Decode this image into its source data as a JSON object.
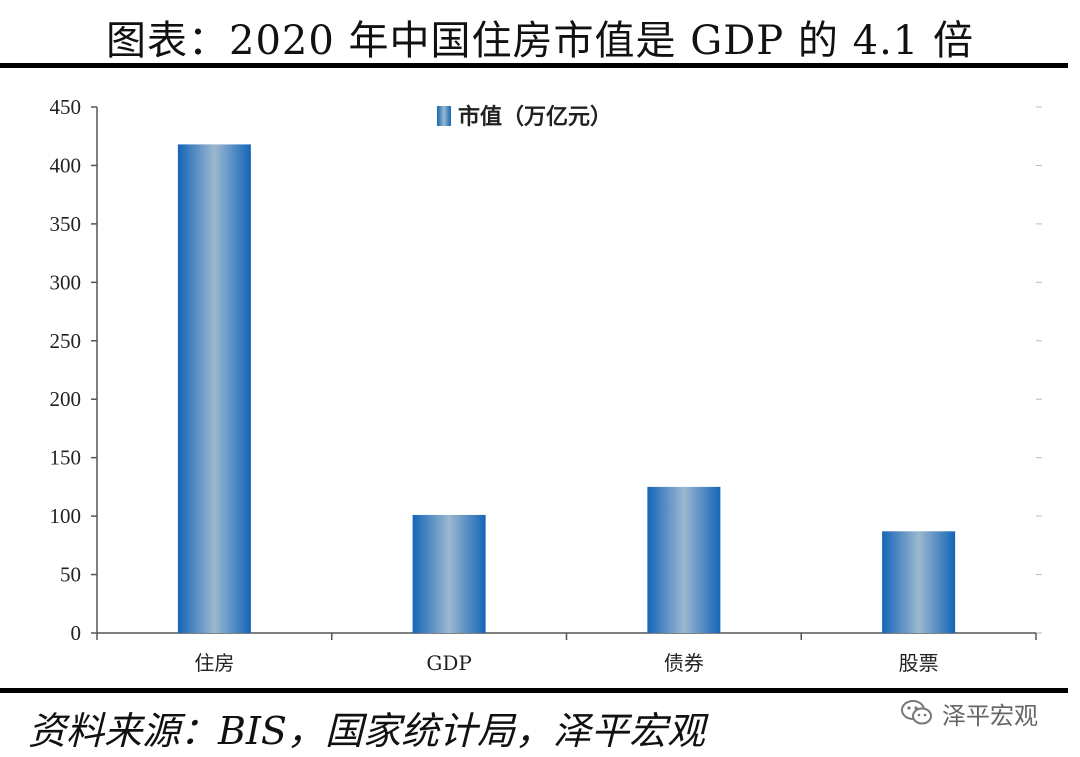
{
  "title": "图表：2020 年中国住房市值是 GDP 的 4.1 倍",
  "source": "资料来源：BIS，国家统计局，泽平宏观",
  "watermark": {
    "text": "泽平宏观",
    "icon": "wechat-icon"
  },
  "chart_data": {
    "type": "bar",
    "categories": [
      "住房",
      "GDP",
      "债券",
      "股票"
    ],
    "series": [
      {
        "name": "市值（万亿元）",
        "values": [
          418,
          101,
          125,
          87
        ],
        "color": "#2f7fc6"
      }
    ],
    "yticks": [
      0,
      50,
      100,
      150,
      200,
      250,
      300,
      350,
      400,
      450
    ],
    "ylim": [
      0,
      450
    ],
    "legend_position": "top-center",
    "grid": false,
    "xlabel": "",
    "ylabel": ""
  }
}
